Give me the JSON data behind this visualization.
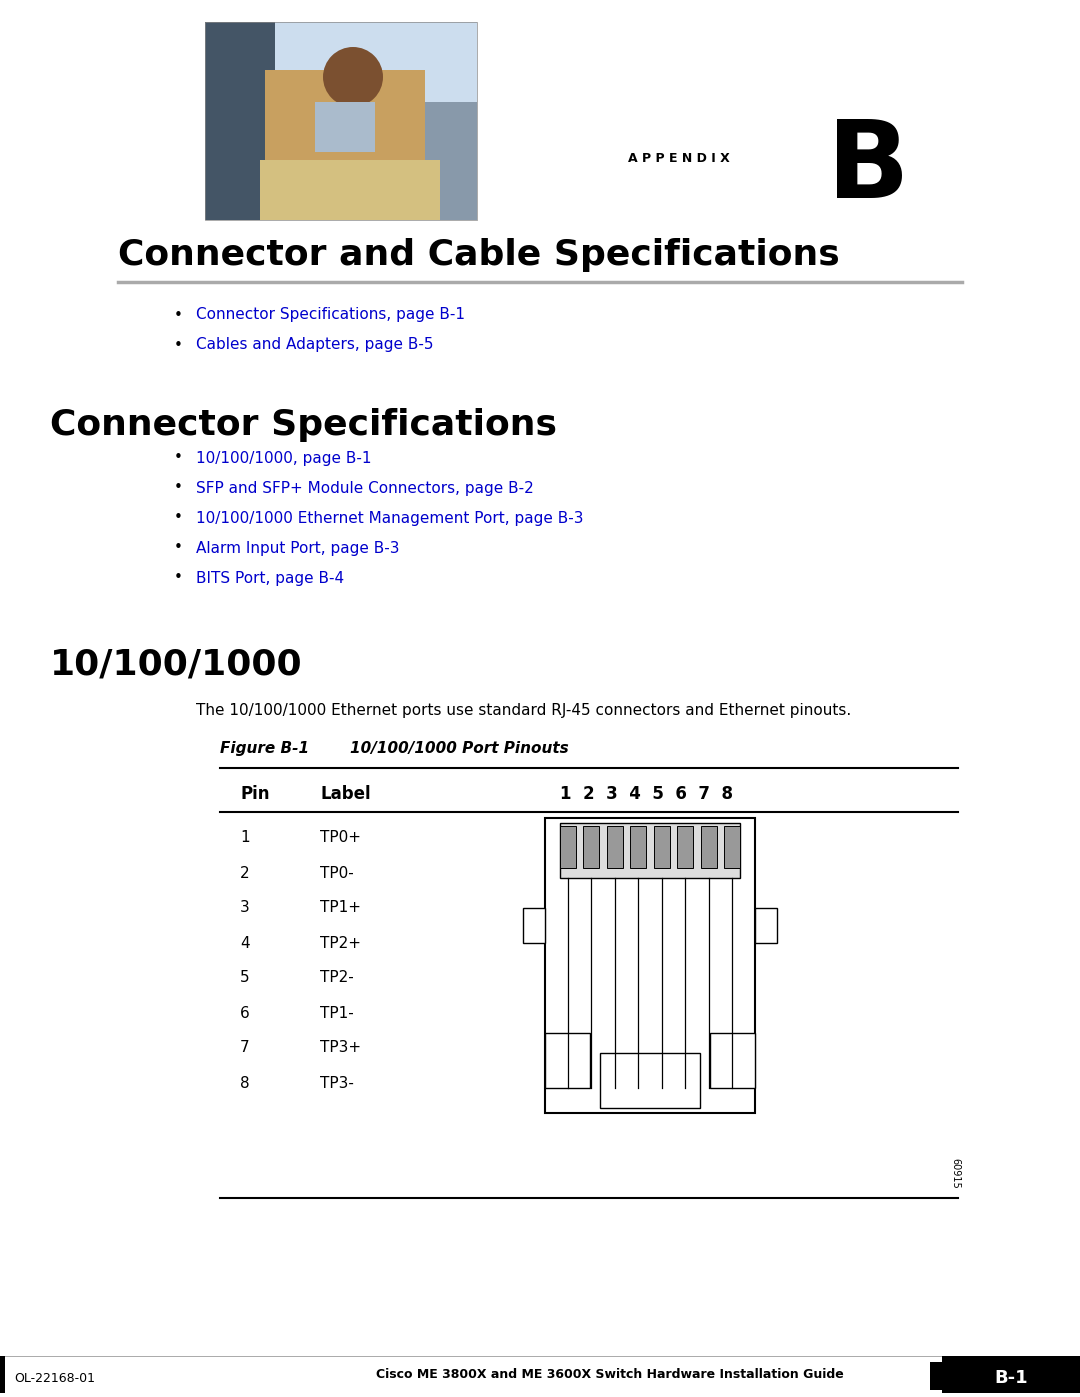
{
  "page_bg": "#ffffff",
  "appendix_label": "A P P E N D I X",
  "appendix_letter": "B",
  "main_title": "Connector and Cable Specifications",
  "toc_items": [
    "Connector Specifications, page B-1",
    "Cables and Adapters, page B-5"
  ],
  "section1_title": "Connector Specifications",
  "section1_items": [
    "10/100/1000, page B-1",
    "SFP and SFP+ Module Connectors, page B-2",
    "10/100/1000 Ethernet Management Port, page B-3",
    "Alarm Input Port, page B-3",
    "BITS Port, page B-4"
  ],
  "section2_title": "10/100/1000",
  "body_text": "The 10/100/1000 Ethernet ports use standard RJ-45 connectors and Ethernet pinouts.",
  "figure_label": "Figure B-1",
  "figure_title": "10/100/1000 Port Pinouts",
  "table_col1": "Pin",
  "table_col2": "Label",
  "table_col3": "1  2  3  4  5  6  7  8",
  "pins": [
    1,
    2,
    3,
    4,
    5,
    6,
    7,
    8
  ],
  "labels": [
    "TP0+",
    "TP0-",
    "TP1+",
    "TP2+",
    "TP2-",
    "TP1-",
    "TP3+",
    "TP3-"
  ],
  "link_color": "#0000CC",
  "footer_left": "OL-22168-01",
  "footer_center": "Cisco ME 3800X and ME 3600X Switch Hardware Installation Guide",
  "footer_right": "B-1",
  "figure_number": "60915"
}
